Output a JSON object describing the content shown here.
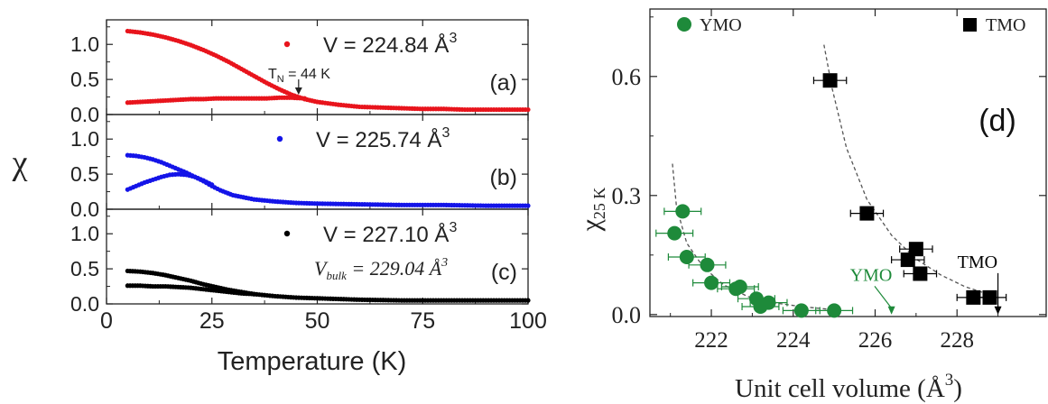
{
  "chart_data": [
    {
      "type": "scatter",
      "xlabel": "Temperature (K)",
      "ylabel": "χ",
      "xlim": [
        0,
        100
      ],
      "x_ticks": [
        "0",
        "25",
        "50",
        "75",
        "100"
      ],
      "y_ticks": [
        "0.0",
        "0.5",
        "1.0"
      ],
      "panels": [
        {
          "id": "a",
          "label": "(a)",
          "legend": "V = 224.84 Å",
          "legend_sup": "3",
          "color": "#e8141c",
          "ylim": [
            0,
            1.35
          ],
          "annotation": {
            "text_main": "T",
            "text_sub": "N",
            "text_rest": " = 44 K",
            "arrow_x": 46,
            "arrow_y": 0.27
          },
          "series": [
            {
              "name": "upper",
              "x": [
                5,
                8,
                11,
                14,
                17,
                20,
                23,
                26,
                29,
                32,
                35,
                38,
                41,
                44,
                47,
                50,
                55,
                60,
                65,
                70,
                75,
                80,
                85,
                90,
                95,
                100
              ],
              "y": [
                1.19,
                1.17,
                1.14,
                1.1,
                1.05,
                0.99,
                0.92,
                0.84,
                0.75,
                0.65,
                0.55,
                0.45,
                0.36,
                0.28,
                0.22,
                0.18,
                0.14,
                0.11,
                0.1,
                0.09,
                0.08,
                0.08,
                0.07,
                0.07,
                0.07,
                0.07
              ]
            },
            {
              "name": "lower",
              "x": [
                5,
                8,
                11,
                14,
                17,
                20,
                23,
                26,
                29,
                32,
                35,
                38,
                41,
                44,
                47
              ],
              "y": [
                0.17,
                0.18,
                0.19,
                0.2,
                0.21,
                0.22,
                0.22,
                0.23,
                0.23,
                0.23,
                0.23,
                0.23,
                0.24,
                0.24,
                0.23
              ]
            }
          ]
        },
        {
          "id": "b",
          "label": "(b)",
          "legend": "V = 225.74 Å",
          "legend_sup": "3",
          "color": "#1414e8",
          "ylim": [
            0,
            1.35
          ],
          "series": [
            {
              "name": "upper",
              "x": [
                5,
                7,
                9,
                11,
                13,
                15,
                17,
                19,
                21,
                23,
                25,
                27,
                30,
                35,
                40,
                45,
                50,
                60,
                70,
                80,
                90,
                100
              ],
              "y": [
                0.77,
                0.76,
                0.74,
                0.71,
                0.67,
                0.62,
                0.57,
                0.52,
                0.46,
                0.4,
                0.33,
                0.27,
                0.2,
                0.14,
                0.11,
                0.09,
                0.08,
                0.07,
                0.06,
                0.06,
                0.05,
                0.05
              ]
            },
            {
              "name": "lower",
              "x": [
                5,
                7,
                9,
                11,
                13,
                15,
                17,
                19,
                21,
                23,
                25
              ],
              "y": [
                0.28,
                0.33,
                0.38,
                0.42,
                0.46,
                0.49,
                0.5,
                0.49,
                0.46,
                0.41,
                0.35
              ]
            }
          ]
        },
        {
          "id": "c",
          "label": "(c)",
          "legend": "V = 227.10 Å",
          "legend_sup": "3",
          "legend2_main": "V",
          "legend2_sub": "bulk",
          "legend2_rest": " = 229.04 Å",
          "legend2_sup": "3",
          "color": "#000000",
          "ylim": [
            0,
            1.35
          ],
          "series": [
            {
              "name": "upper",
              "x": [
                5,
                8,
                11,
                14,
                17,
                20,
                23,
                26,
                29,
                32,
                35,
                40,
                45,
                50,
                60,
                70,
                80,
                90,
                100
              ],
              "y": [
                0.47,
                0.46,
                0.44,
                0.41,
                0.37,
                0.33,
                0.28,
                0.24,
                0.2,
                0.17,
                0.14,
                0.11,
                0.09,
                0.08,
                0.06,
                0.05,
                0.05,
                0.05,
                0.05
              ]
            },
            {
              "name": "lower",
              "x": [
                5,
                8,
                11,
                14,
                17,
                20,
                23,
                26,
                29,
                32,
                35
              ],
              "y": [
                0.26,
                0.26,
                0.25,
                0.25,
                0.24,
                0.23,
                0.21,
                0.19,
                0.17,
                0.15,
                0.14
              ]
            }
          ]
        }
      ]
    },
    {
      "type": "scatter",
      "title": "(d)",
      "xlabel": "Unit cell volume (Å",
      "xlabel_sup": "3",
      "xlabel_end": ")",
      "ylabel": "χ",
      "ylabel_sub": "25 K",
      "xlim": [
        220.5,
        230.2
      ],
      "ylim": [
        -0.005,
        0.77
      ],
      "x_ticks": [
        222,
        224,
        226,
        228
      ],
      "x_tick_labels": [
        "222",
        "224",
        "226",
        "228"
      ],
      "y_ticks": [
        0.0,
        0.3,
        0.6
      ],
      "y_tick_labels": [
        "0.0",
        "0.3",
        "0.6"
      ],
      "legend": [
        {
          "name": "YMO",
          "marker": "circle",
          "color": "#1e8a3a"
        },
        {
          "name": "TMO",
          "marker": "square",
          "color": "#000000"
        }
      ],
      "annotations": [
        {
          "text": "YMO",
          "color": "#1e8a3a",
          "text_x": 225.9,
          "text_y": 0.085,
          "arrow_to_x": 226.4,
          "arrow_to_y": 0.0
        },
        {
          "text": "TMO",
          "color": "#000000",
          "text_x": 228.5,
          "text_y": 0.118,
          "arrow_to_x": 229.0,
          "arrow_to_y": 0.0
        }
      ],
      "series": [
        {
          "name": "YMO",
          "marker": "circle",
          "color": "#1e8a3a",
          "x": [
            221.3,
            221.1,
            221.4,
            221.9,
            222.0,
            222.6,
            222.7,
            223.1,
            223.2,
            223.4,
            224.2,
            225.0
          ],
          "y": [
            0.26,
            0.205,
            0.145,
            0.125,
            0.08,
            0.065,
            0.07,
            0.04,
            0.02,
            0.03,
            0.01,
            0.01
          ],
          "xerr": 0.45
        },
        {
          "name": "TMO",
          "marker": "square",
          "color": "#000000",
          "x": [
            224.9,
            225.8,
            227.0,
            226.8,
            227.1,
            228.4,
            228.8
          ],
          "y": [
            0.59,
            0.255,
            0.165,
            0.138,
            0.103,
            0.043,
            0.043
          ],
          "xerr": 0.4
        }
      ],
      "guide_lines": [
        {
          "name": "YMO-guide",
          "x": [
            221.05,
            221.15,
            221.4,
            221.8,
            222.3,
            222.9,
            223.5,
            224.2,
            225.0
          ],
          "y": [
            0.38,
            0.27,
            0.18,
            0.12,
            0.075,
            0.045,
            0.03,
            0.02,
            0.012
          ]
        },
        {
          "name": "TMO-guide",
          "x": [
            224.75,
            224.95,
            225.3,
            225.8,
            226.4,
            227.0,
            227.6,
            228.2,
            228.8
          ],
          "y": [
            0.68,
            0.57,
            0.42,
            0.29,
            0.2,
            0.14,
            0.1,
            0.07,
            0.05
          ]
        }
      ]
    }
  ]
}
